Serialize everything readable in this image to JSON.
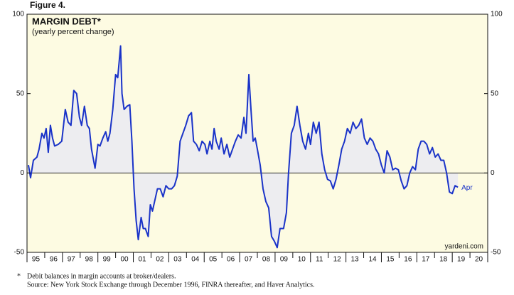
{
  "chart_data": {
    "type": "line",
    "figure_label": "Figure 4.",
    "title": "MARGIN DEBT*",
    "subtitle": "(yearly percent change)",
    "source_mark": "yardeni.com",
    "annotation": "Apr",
    "notes": [
      {
        "marker": "*",
        "text": "Debit balances in margin accounts at broker/dealers."
      },
      {
        "marker": null,
        "text": "Source: New York Stock Exchange through December 1996, FINRA thereafter, and Haver Analytics."
      }
    ],
    "xlim": [
      1995,
      2021
    ],
    "xticks": [
      {
        "value": 1995.5,
        "label": "95"
      },
      {
        "value": 1996.5,
        "label": "96"
      },
      {
        "value": 1997.5,
        "label": "97"
      },
      {
        "value": 1998.5,
        "label": "98"
      },
      {
        "value": 1999.5,
        "label": "99"
      },
      {
        "value": 2000.5,
        "label": "00"
      },
      {
        "value": 2001.5,
        "label": "01"
      },
      {
        "value": 2002.5,
        "label": "02"
      },
      {
        "value": 2003.5,
        "label": "03"
      },
      {
        "value": 2004.5,
        "label": "04"
      },
      {
        "value": 2005.5,
        "label": "05"
      },
      {
        "value": 2006.5,
        "label": "06"
      },
      {
        "value": 2007.5,
        "label": "07"
      },
      {
        "value": 2008.5,
        "label": "08"
      },
      {
        "value": 2009.5,
        "label": "09"
      },
      {
        "value": 2010.5,
        "label": "10"
      },
      {
        "value": 2011.5,
        "label": "11"
      },
      {
        "value": 2012.5,
        "label": "12"
      },
      {
        "value": 2013.5,
        "label": "13"
      },
      {
        "value": 2014.5,
        "label": "14"
      },
      {
        "value": 2015.5,
        "label": "15"
      },
      {
        "value": 2016.5,
        "label": "16"
      },
      {
        "value": 2017.5,
        "label": "17"
      },
      {
        "value": 2018.5,
        "label": "18"
      },
      {
        "value": 2019.5,
        "label": "19"
      },
      {
        "value": 2020.5,
        "label": "20"
      }
    ],
    "ylim": [
      -50,
      100
    ],
    "yticks": [
      -50,
      0,
      50,
      100
    ],
    "y2lim": [
      -50,
      100
    ],
    "y2ticks": [
      -50,
      0,
      50,
      100
    ],
    "x": [
      1995.08,
      1995.2,
      1995.36,
      1995.56,
      1995.68,
      1995.84,
      1995.96,
      1996.08,
      1996.2,
      1996.32,
      1996.44,
      1996.56,
      1996.76,
      1996.96,
      1997.16,
      1997.32,
      1997.48,
      1997.64,
      1997.8,
      1997.96,
      1998.08,
      1998.24,
      1998.4,
      1998.52,
      1998.64,
      1998.84,
      1999.0,
      1999.12,
      1999.28,
      1999.44,
      1999.56,
      1999.68,
      1999.84,
      2000.0,
      2000.12,
      2000.28,
      2000.36,
      2000.48,
      2000.64,
      2000.8,
      2000.92,
      2001.04,
      2001.16,
      2001.28,
      2001.44,
      2001.56,
      2001.68,
      2001.84,
      2001.96,
      2002.08,
      2002.2,
      2002.36,
      2002.52,
      2002.68,
      2002.84,
      2003.0,
      2003.16,
      2003.32,
      2003.48,
      2003.64,
      2003.8,
      2003.96,
      2004.12,
      2004.28,
      2004.4,
      2004.56,
      2004.72,
      2004.88,
      2005.04,
      2005.16,
      2005.32,
      2005.44,
      2005.56,
      2005.68,
      2005.84,
      2005.96,
      2006.12,
      2006.28,
      2006.44,
      2006.6,
      2006.76,
      2006.92,
      2007.08,
      2007.24,
      2007.36,
      2007.52,
      2007.64,
      2007.76,
      2007.88,
      2008.0,
      2008.16,
      2008.32,
      2008.48,
      2008.64,
      2008.8,
      2008.96,
      2009.12,
      2009.28,
      2009.48,
      2009.64,
      2009.76,
      2009.92,
      2010.08,
      2010.24,
      2010.4,
      2010.56,
      2010.72,
      2010.88,
      2011.0,
      2011.16,
      2011.32,
      2011.48,
      2011.64,
      2011.8,
      2011.96,
      2012.12,
      2012.28,
      2012.44,
      2012.6,
      2012.76,
      2012.92,
      2013.08,
      2013.24,
      2013.4,
      2013.56,
      2013.72,
      2013.88,
      2014.04,
      2014.2,
      2014.36,
      2014.52,
      2014.68,
      2014.84,
      2015.0,
      2015.16,
      2015.32,
      2015.48,
      2015.64,
      2015.8,
      2015.96,
      2016.12,
      2016.28,
      2016.44,
      2016.6,
      2016.76,
      2016.92,
      2017.08,
      2017.24,
      2017.4,
      2017.56,
      2017.72,
      2017.88,
      2018.04,
      2018.2,
      2018.36,
      2018.52,
      2018.68,
      2018.84,
      2019.0,
      2019.16,
      2019.32
    ],
    "series": [
      {
        "name": "Margin debt",
        "color": "#1a33c8",
        "fill": "#ededf0",
        "values": [
          5,
          -3,
          8,
          10,
          15,
          25,
          22,
          28,
          13,
          30,
          22,
          17,
          18,
          20,
          40,
          32,
          30,
          52,
          50,
          35,
          30,
          42,
          30,
          28,
          15,
          3,
          18,
          17,
          22,
          26,
          20,
          25,
          40,
          62,
          60,
          80,
          50,
          40,
          42,
          43,
          20,
          -10,
          -30,
          -42,
          -28,
          -35,
          -35,
          -40,
          -20,
          -24,
          -18,
          -10,
          -10,
          -15,
          -8,
          -10,
          -10,
          -8,
          -2,
          20,
          25,
          30,
          36,
          38,
          20,
          18,
          14,
          20,
          18,
          12,
          20,
          15,
          28,
          20,
          15,
          22,
          12,
          18,
          10,
          15,
          20,
          24,
          22,
          35,
          25,
          62,
          40,
          20,
          22,
          15,
          5,
          -10,
          -18,
          -22,
          -40,
          -43,
          -47,
          -35,
          -35,
          -25,
          0,
          25,
          30,
          42,
          30,
          20,
          15,
          25,
          18,
          32,
          25,
          32,
          12,
          2,
          -4,
          -5,
          -10,
          -4,
          5,
          15,
          20,
          28,
          25,
          32,
          28,
          30,
          34,
          22,
          18,
          22,
          20,
          15,
          12,
          5,
          0,
          14,
          10,
          2,
          3,
          2,
          -5,
          -10,
          -8,
          0,
          4,
          2,
          15,
          20,
          20,
          18,
          12,
          16,
          10,
          12,
          8,
          8,
          0,
          -12,
          -13,
          -8,
          -9
        ]
      }
    ]
  }
}
